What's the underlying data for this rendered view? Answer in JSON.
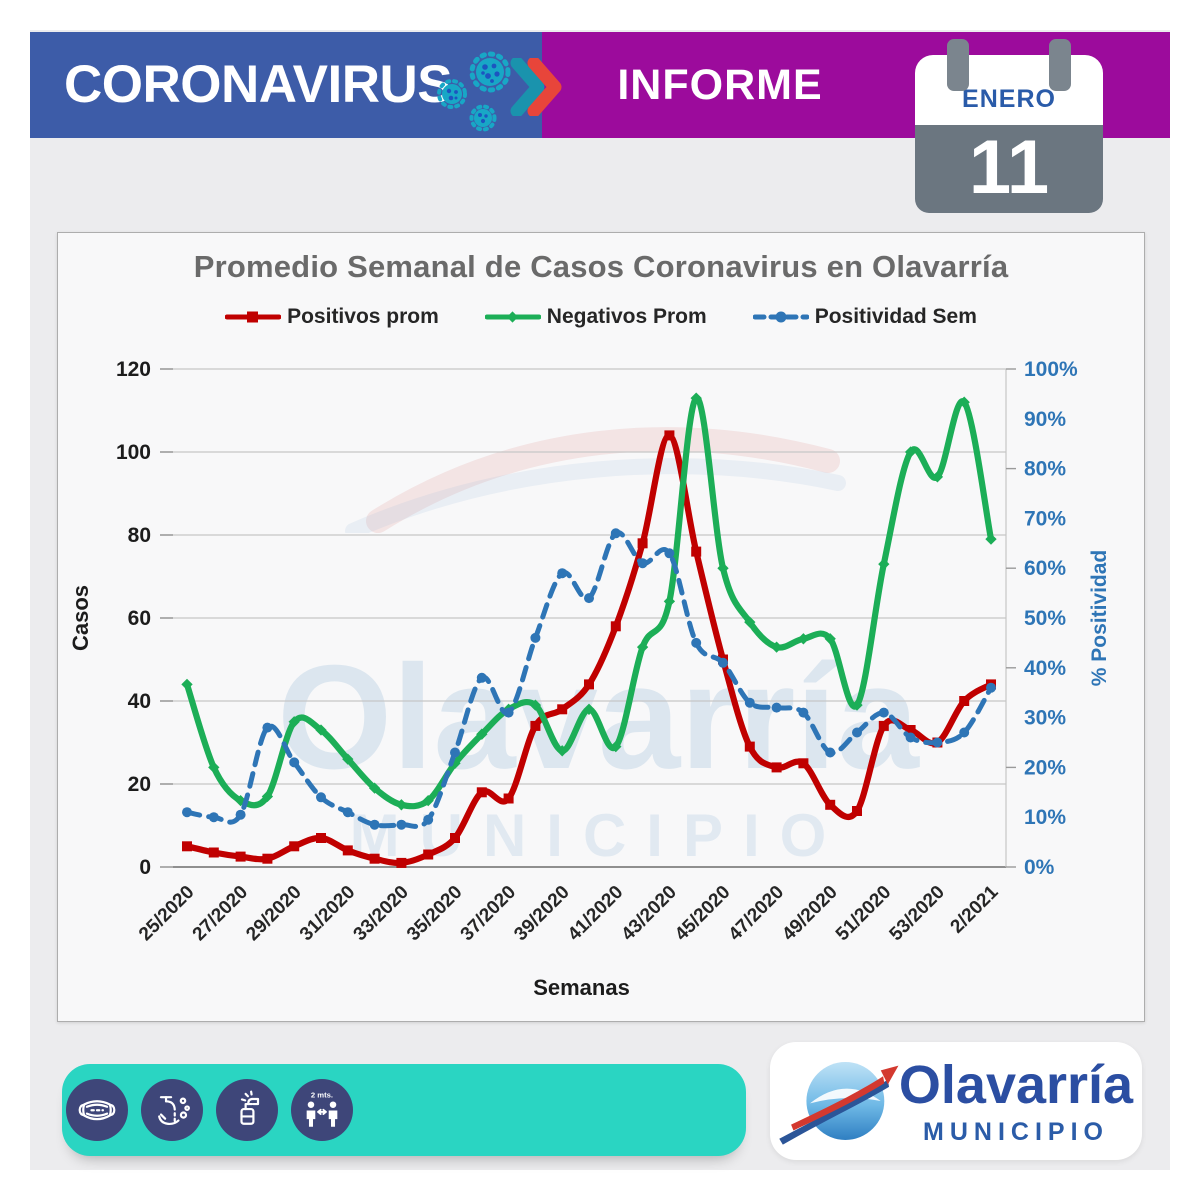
{
  "header": {
    "brand": "CORONAVIRUS",
    "report_title": "INFORME",
    "calendar": {
      "month": "ENERO",
      "day": "11"
    },
    "colors": {
      "band_blue": "#3d5ca8",
      "band_purple": "#9c0b9c",
      "virus_teal": "#18a7c6",
      "chevron_teal": "#1a93ad",
      "chevron_red": "#e8453a"
    }
  },
  "chart": {
    "title": "Promedio Semanal de Casos Coronavirus en Olavarría",
    "xlabel": "Semanas",
    "ylabel_left": "Casos",
    "ylabel_right": "% Positividad",
    "watermark": {
      "line1": "Olavarría",
      "line2": "MUNICIPIO"
    }
  },
  "chart_data": {
    "type": "line",
    "title": "Promedio Semanal de Casos Coronavirus en Olavarría",
    "xlabel": "Semanas",
    "ylabel_left": "Casos",
    "ylabel_right": "% Positividad",
    "grid": "horizontal",
    "legend_position": "top",
    "ylim_left": [
      0,
      120
    ],
    "ylim_right_percent": [
      0,
      100
    ],
    "y_left_ticks": [
      0,
      20,
      40,
      60,
      80,
      100,
      120
    ],
    "y_right_tick_labels": [
      "0%",
      "10%",
      "20%",
      "30%",
      "40%",
      "50%",
      "60%",
      "70%",
      "80%",
      "90%",
      "100%"
    ],
    "categories": [
      "25/2020",
      "26/2020",
      "27/2020",
      "28/2020",
      "29/2020",
      "30/2020",
      "31/2020",
      "32/2020",
      "33/2020",
      "34/2020",
      "35/2020",
      "36/2020",
      "37/2020",
      "38/2020",
      "39/2020",
      "40/2020",
      "41/2020",
      "42/2020",
      "43/2020",
      "44/2020",
      "45/2020",
      "46/2020",
      "47/2020",
      "48/2020",
      "49/2020",
      "50/2020",
      "51/2020",
      "52/2020",
      "53/2020",
      "1/2021",
      "2/2021"
    ],
    "x_tick_labels": [
      "25/2020",
      "27/2020",
      "29/2020",
      "31/2020",
      "33/2020",
      "35/2020",
      "37/2020",
      "39/2020",
      "41/2020",
      "43/2020",
      "45/2020",
      "47/2020",
      "49/2020",
      "51/2020",
      "53/2020",
      "2/2021"
    ],
    "series": [
      {
        "name": "Positivos prom",
        "axis": "left",
        "unit": "casos",
        "color": "#c00000",
        "marker": "square",
        "line": "solid",
        "values": [
          5,
          3.5,
          2.5,
          2,
          5,
          7,
          4,
          2,
          1,
          3,
          7,
          18,
          16.5,
          34,
          38,
          44,
          58,
          78,
          104,
          76,
          50,
          29,
          24,
          25,
          15,
          13.5,
          34,
          33,
          30,
          40,
          44
        ]
      },
      {
        "name": "Negativos Prom",
        "axis": "left",
        "unit": "casos",
        "color": "#1cae57",
        "marker": "diamond",
        "line": "solid",
        "values": [
          44,
          24,
          16,
          17,
          35,
          33,
          26,
          19,
          15,
          16,
          25,
          32,
          38,
          39,
          28,
          38,
          29,
          53,
          64,
          113,
          72,
          59,
          53,
          55,
          55,
          39,
          73,
          100,
          94,
          112,
          79
        ]
      },
      {
        "name": "Positividad Sem",
        "axis": "right",
        "unit": "%",
        "color": "#2e75b6",
        "marker": "circle",
        "line": "dashed",
        "values": [
          11,
          10,
          10.5,
          28,
          21,
          14,
          11,
          8.5,
          8.5,
          9.5,
          23,
          38,
          31,
          46,
          59,
          54,
          67,
          61,
          63,
          45,
          41,
          33,
          32,
          31,
          23,
          27,
          31,
          26,
          25,
          27,
          36
        ]
      }
    ]
  },
  "footer": {
    "icons": [
      {
        "name": "face-mask-icon"
      },
      {
        "name": "hand-washing-icon"
      },
      {
        "name": "disinfectant-spray-icon"
      },
      {
        "name": "social-distance-icon",
        "label": "2 mts."
      }
    ],
    "logo": {
      "name": "Olavarría",
      "subtitle": "MUNICIPIO"
    }
  }
}
